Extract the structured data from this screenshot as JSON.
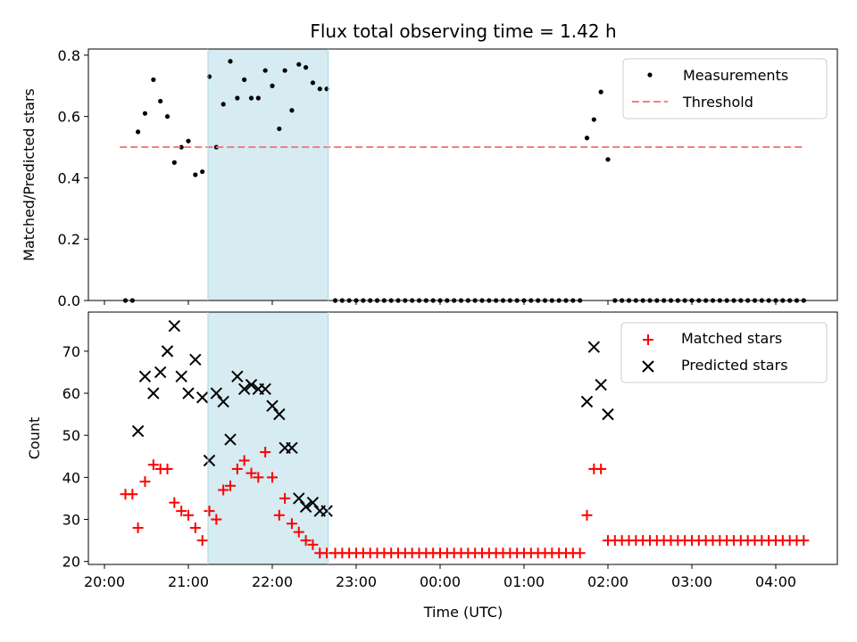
{
  "title": "Flux total observing time = 1.42 h",
  "colors": {
    "measurement": "#000000",
    "threshold": "#f08080",
    "matched": "#ff0000",
    "predicted": "#000000",
    "shade": "#add8e6"
  },
  "chart_data": [
    {
      "type": "scatter",
      "ylabel": "Matched/Predicted stars",
      "ylim": [
        0,
        0.82
      ],
      "yticks": [
        0.0,
        0.2,
        0.4,
        0.6,
        0.8
      ],
      "ytick_labels": [
        "0.0",
        "0.2",
        "0.4",
        "0.6",
        "0.8"
      ],
      "legend": {
        "placement": "top-right",
        "entries": [
          "Measurements",
          "Threshold"
        ]
      },
      "shaded_span": [
        "21:14",
        "22:40"
      ],
      "series": [
        {
          "name": "Measurements",
          "marker": "dot",
          "points": [
            [
              "20:15",
              0.0
            ],
            [
              "20:20",
              0.0
            ],
            [
              "20:24",
              0.55
            ],
            [
              "20:29",
              0.61
            ],
            [
              "20:35",
              0.72
            ],
            [
              "20:40",
              0.65
            ],
            [
              "20:45",
              0.6
            ],
            [
              "20:50",
              0.45
            ],
            [
              "20:55",
              0.5
            ],
            [
              "21:00",
              0.52
            ],
            [
              "21:05",
              0.41
            ],
            [
              "21:10",
              0.42
            ],
            [
              "21:15",
              0.73
            ],
            [
              "21:20",
              0.5
            ],
            [
              "21:25",
              0.64
            ],
            [
              "21:30",
              0.78
            ],
            [
              "21:35",
              0.66
            ],
            [
              "21:40",
              0.72
            ],
            [
              "21:45",
              0.66
            ],
            [
              "21:50",
              0.66
            ],
            [
              "21:55",
              0.75
            ],
            [
              "22:00",
              0.7
            ],
            [
              "22:05",
              0.56
            ],
            [
              "22:09",
              0.75
            ],
            [
              "22:14",
              0.62
            ],
            [
              "22:19",
              0.77
            ],
            [
              "22:24",
              0.76
            ],
            [
              "22:29",
              0.71
            ],
            [
              "22:34",
              0.69
            ],
            [
              "22:39",
              0.69
            ],
            [
              "22:45",
              0.0
            ],
            [
              "22:50",
              0.0
            ],
            [
              "22:55",
              0.0
            ],
            [
              "23:00",
              0.0
            ],
            [
              "23:05",
              0.0
            ],
            [
              "23:10",
              0.0
            ],
            [
              "23:15",
              0.0
            ],
            [
              "23:20",
              0.0
            ],
            [
              "23:25",
              0.0
            ],
            [
              "23:30",
              0.0
            ],
            [
              "23:35",
              0.0
            ],
            [
              "23:40",
              0.0
            ],
            [
              "23:45",
              0.0
            ],
            [
              "23:50",
              0.0
            ],
            [
              "23:55",
              0.0
            ],
            [
              "00:00",
              0.0
            ],
            [
              "00:05",
              0.0
            ],
            [
              "00:10",
              0.0
            ],
            [
              "00:15",
              0.0
            ],
            [
              "00:20",
              0.0
            ],
            [
              "00:25",
              0.0
            ],
            [
              "00:30",
              0.0
            ],
            [
              "00:35",
              0.0
            ],
            [
              "00:40",
              0.0
            ],
            [
              "00:45",
              0.0
            ],
            [
              "00:50",
              0.0
            ],
            [
              "00:55",
              0.0
            ],
            [
              "01:00",
              0.0
            ],
            [
              "01:05",
              0.0
            ],
            [
              "01:10",
              0.0
            ],
            [
              "01:15",
              0.0
            ],
            [
              "01:20",
              0.0
            ],
            [
              "01:25",
              0.0
            ],
            [
              "01:30",
              0.0
            ],
            [
              "01:35",
              0.0
            ],
            [
              "01:40",
              0.0
            ],
            [
              "01:45",
              0.53
            ],
            [
              "01:50",
              0.59
            ],
            [
              "01:55",
              0.68
            ],
            [
              "02:00",
              0.46
            ],
            [
              "02:05",
              0.0
            ],
            [
              "02:10",
              0.0
            ],
            [
              "02:15",
              0.0
            ],
            [
              "02:20",
              0.0
            ],
            [
              "02:25",
              0.0
            ],
            [
              "02:30",
              0.0
            ],
            [
              "02:35",
              0.0
            ],
            [
              "02:40",
              0.0
            ],
            [
              "02:45",
              0.0
            ],
            [
              "02:50",
              0.0
            ],
            [
              "02:55",
              0.0
            ],
            [
              "03:00",
              0.0
            ],
            [
              "03:05",
              0.0
            ],
            [
              "03:10",
              0.0
            ],
            [
              "03:15",
              0.0
            ],
            [
              "03:20",
              0.0
            ],
            [
              "03:25",
              0.0
            ],
            [
              "03:30",
              0.0
            ],
            [
              "03:35",
              0.0
            ],
            [
              "03:40",
              0.0
            ],
            [
              "03:45",
              0.0
            ],
            [
              "03:50",
              0.0
            ],
            [
              "03:55",
              0.0
            ],
            [
              "04:00",
              0.0
            ],
            [
              "04:05",
              0.0
            ],
            [
              "04:10",
              0.0
            ],
            [
              "04:15",
              0.0
            ],
            [
              "04:20",
              0.0
            ]
          ]
        },
        {
          "name": "Threshold",
          "style": "dashed",
          "points": [
            [
              "20:11",
              0.5
            ],
            [
              "04:21",
              0.5
            ]
          ]
        }
      ]
    },
    {
      "type": "scatter",
      "xlabel": "Time (UTC)",
      "ylabel": "Count",
      "ylim": [
        19.3,
        79.3
      ],
      "yticks": [
        20,
        30,
        40,
        50,
        60,
        70
      ],
      "ytick_labels": [
        "20",
        "30",
        "40",
        "50",
        "60",
        "70"
      ],
      "xticks": [
        "20:00",
        "21:00",
        "22:00",
        "23:00",
        "00:00",
        "01:00",
        "02:00",
        "03:00",
        "04:00"
      ],
      "xtick_labels": [
        "20:00",
        "21:00",
        "22:00",
        "23:00",
        "00:00",
        "01:00",
        "02:00",
        "03:00",
        "04:00"
      ],
      "legend": {
        "placement": "top-right",
        "entries": [
          "Matched stars",
          "Predicted stars"
        ]
      },
      "shaded_span": [
        "21:14",
        "22:40"
      ],
      "series": [
        {
          "name": "Matched stars",
          "marker": "plus",
          "points": [
            [
              "20:15",
              36
            ],
            [
              "20:20",
              36
            ],
            [
              "20:24",
              28
            ],
            [
              "20:29",
              39
            ],
            [
              "20:35",
              43
            ],
            [
              "20:40",
              42
            ],
            [
              "20:45",
              42
            ],
            [
              "20:50",
              34
            ],
            [
              "20:55",
              32
            ],
            [
              "21:00",
              31
            ],
            [
              "21:05",
              28
            ],
            [
              "21:10",
              25
            ],
            [
              "21:15",
              32
            ],
            [
              "21:20",
              30
            ],
            [
              "21:25",
              37
            ],
            [
              "21:30",
              38
            ],
            [
              "21:35",
              42
            ],
            [
              "21:40",
              44
            ],
            [
              "21:45",
              41
            ],
            [
              "21:50",
              40
            ],
            [
              "21:55",
              46
            ],
            [
              "22:00",
              40
            ],
            [
              "22:05",
              31
            ],
            [
              "22:09",
              35
            ],
            [
              "22:14",
              29
            ],
            [
              "22:19",
              27
            ],
            [
              "22:24",
              25
            ],
            [
              "22:29",
              24
            ],
            [
              "22:34",
              22
            ],
            [
              "22:39",
              22
            ],
            [
              "22:45",
              22
            ],
            [
              "22:50",
              22
            ],
            [
              "22:55",
              22
            ],
            [
              "23:00",
              22
            ],
            [
              "23:05",
              22
            ],
            [
              "23:10",
              22
            ],
            [
              "23:15",
              22
            ],
            [
              "23:20",
              22
            ],
            [
              "23:25",
              22
            ],
            [
              "23:30",
              22
            ],
            [
              "23:35",
              22
            ],
            [
              "23:40",
              22
            ],
            [
              "23:45",
              22
            ],
            [
              "23:50",
              22
            ],
            [
              "23:55",
              22
            ],
            [
              "00:00",
              22
            ],
            [
              "00:05",
              22
            ],
            [
              "00:10",
              22
            ],
            [
              "00:15",
              22
            ],
            [
              "00:20",
              22
            ],
            [
              "00:25",
              22
            ],
            [
              "00:30",
              22
            ],
            [
              "00:35",
              22
            ],
            [
              "00:40",
              22
            ],
            [
              "00:45",
              22
            ],
            [
              "00:50",
              22
            ],
            [
              "00:55",
              22
            ],
            [
              "01:00",
              22
            ],
            [
              "01:05",
              22
            ],
            [
              "01:10",
              22
            ],
            [
              "01:15",
              22
            ],
            [
              "01:20",
              22
            ],
            [
              "01:25",
              22
            ],
            [
              "01:30",
              22
            ],
            [
              "01:35",
              22
            ],
            [
              "01:40",
              22
            ],
            [
              "01:45",
              31
            ],
            [
              "01:50",
              42
            ],
            [
              "01:55",
              42
            ],
            [
              "02:00",
              25
            ],
            [
              "02:05",
              25
            ],
            [
              "02:10",
              25
            ],
            [
              "02:15",
              25
            ],
            [
              "02:20",
              25
            ],
            [
              "02:25",
              25
            ],
            [
              "02:30",
              25
            ],
            [
              "02:35",
              25
            ],
            [
              "02:40",
              25
            ],
            [
              "02:45",
              25
            ],
            [
              "02:50",
              25
            ],
            [
              "02:55",
              25
            ],
            [
              "03:00",
              25
            ],
            [
              "03:05",
              25
            ],
            [
              "03:10",
              25
            ],
            [
              "03:15",
              25
            ],
            [
              "03:20",
              25
            ],
            [
              "03:25",
              25
            ],
            [
              "03:30",
              25
            ],
            [
              "03:35",
              25
            ],
            [
              "03:40",
              25
            ],
            [
              "03:45",
              25
            ],
            [
              "03:50",
              25
            ],
            [
              "03:55",
              25
            ],
            [
              "04:00",
              25
            ],
            [
              "04:05",
              25
            ],
            [
              "04:10",
              25
            ],
            [
              "04:15",
              25
            ],
            [
              "04:20",
              25
            ]
          ]
        },
        {
          "name": "Predicted stars",
          "marker": "x",
          "points": [
            [
              "20:24",
              51
            ],
            [
              "20:29",
              64
            ],
            [
              "20:35",
              60
            ],
            [
              "20:40",
              65
            ],
            [
              "20:45",
              70
            ],
            [
              "20:50",
              76
            ],
            [
              "20:55",
              64
            ],
            [
              "21:00",
              60
            ],
            [
              "21:05",
              68
            ],
            [
              "21:10",
              59
            ],
            [
              "21:15",
              44
            ],
            [
              "21:20",
              60
            ],
            [
              "21:25",
              58
            ],
            [
              "21:30",
              49
            ],
            [
              "21:35",
              64
            ],
            [
              "21:40",
              61
            ],
            [
              "21:45",
              62
            ],
            [
              "21:50",
              61
            ],
            [
              "21:55",
              61
            ],
            [
              "22:00",
              57
            ],
            [
              "22:05",
              55
            ],
            [
              "22:09",
              47
            ],
            [
              "22:14",
              47
            ],
            [
              "22:19",
              35
            ],
            [
              "22:24",
              33
            ],
            [
              "22:29",
              34
            ],
            [
              "22:34",
              32
            ],
            [
              "22:39",
              32
            ],
            [
              "01:45",
              58
            ],
            [
              "01:50",
              71
            ],
            [
              "01:55",
              62
            ],
            [
              "02:00",
              55
            ]
          ]
        }
      ]
    }
  ]
}
